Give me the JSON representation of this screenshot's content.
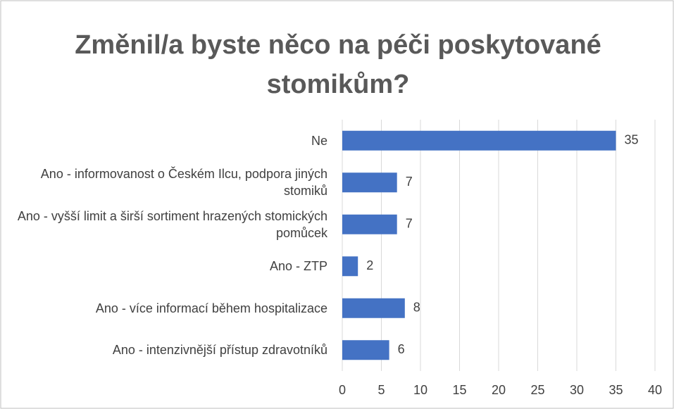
{
  "chart_data": {
    "type": "bar",
    "orientation": "horizontal",
    "title": "Změnil/a byste něco na péči poskytované stomikům?",
    "categories": [
      "Ne",
      "Ano - informovanost o Českém Ilcu, podpora jiných stomiků",
      "Ano - vyšší limit a širší sortiment hrazených stomických pomůcek",
      "Ano - ZTP",
      "Ano - více informací během hospitalizace",
      "Ano - intenzivnější přístup zdravotníků"
    ],
    "values": [
      35,
      7,
      7,
      2,
      8,
      6
    ],
    "color": "#4472c4",
    "xlim": [
      0,
      40
    ],
    "xticks": [
      0,
      5,
      10,
      15,
      20,
      25,
      30,
      35,
      40
    ],
    "grid": true
  }
}
